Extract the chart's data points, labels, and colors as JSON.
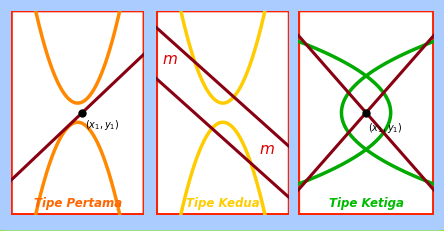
{
  "outer_border_color": "#88ee00",
  "outer_bg_color": "#aaccff",
  "panel_border_color": "#ff2200",
  "panel1": {
    "parabola_color": "#ff8800",
    "line_color": "#880011",
    "label": "Tipe Pertama",
    "label_color": "#ff6600"
  },
  "panel2": {
    "parabola_color": "#ffcc00",
    "line_color": "#880011",
    "label": "Tipe Kedua",
    "label_color": "#ffcc00",
    "m_label_color": "#dd0000"
  },
  "panel3": {
    "parabola_color": "#00aa00",
    "line_color": "#880011",
    "label": "Tipe Ketiga",
    "label_color": "#00bb00"
  }
}
